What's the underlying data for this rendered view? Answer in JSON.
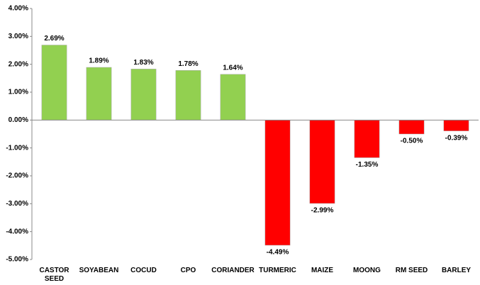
{
  "chart_data": {
    "type": "bar",
    "categories": [
      "CASTOR SEED",
      "SOYABEAN",
      "COCUD",
      "CPO",
      "CORIANDER",
      "TURMERIC",
      "MAIZE",
      "MOONG",
      "RM SEED",
      "BARLEY"
    ],
    "values": [
      2.69,
      1.89,
      1.83,
      1.78,
      1.64,
      -4.49,
      -2.99,
      -1.35,
      -0.5,
      -0.39
    ],
    "value_labels": [
      "2.69%",
      "1.89%",
      "1.83%",
      "1.78%",
      "1.64%",
      "-4.49%",
      "-2.99%",
      "-1.35%",
      "-0.50%",
      "-0.39%"
    ],
    "positive_color": "#92d050",
    "negative_color": "#ff0000",
    "ylim": [
      -5,
      4
    ],
    "yticks": [
      {
        "value": 4,
        "label": "4.00%"
      },
      {
        "value": 3,
        "label": "3.00%"
      },
      {
        "value": 2,
        "label": "2.00%"
      },
      {
        "value": 1,
        "label": "1.00%"
      },
      {
        "value": 0,
        "label": "0.00%"
      },
      {
        "value": -1,
        "label": "-1.00%"
      },
      {
        "value": -2,
        "label": "-2.00%"
      },
      {
        "value": -3,
        "label": "-3.00%"
      },
      {
        "value": -4,
        "label": "-4.00%"
      },
      {
        "value": -5,
        "label": "-5.00%"
      }
    ],
    "grid": false
  }
}
